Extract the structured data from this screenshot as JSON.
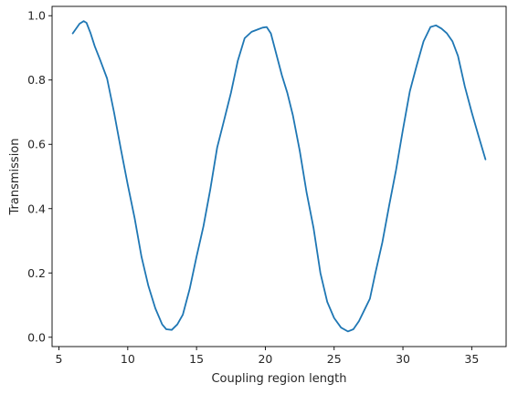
{
  "chart_data": {
    "type": "line",
    "title": "",
    "xlabel": "Coupling region length",
    "ylabel": "Transmission",
    "xlim": [
      4.5,
      37.5
    ],
    "ylim": [
      -0.029,
      1.029
    ],
    "xticks": [
      5,
      10,
      15,
      20,
      25,
      30,
      35
    ],
    "yticks": [
      0.0,
      0.2,
      0.4,
      0.6,
      0.8,
      1.0
    ],
    "grid": false,
    "legend": "none",
    "series": [
      {
        "color": "#1f77b4",
        "x": [
          6,
          6.5,
          6.8,
          7,
          7.3,
          7.6,
          8.0,
          8.5,
          9.0,
          9.5,
          10.0,
          10.5,
          11.0,
          11.5,
          12.0,
          12.5,
          12.8,
          13.2,
          13.6,
          14.0,
          14.5,
          15.0,
          15.5,
          16.0,
          16.5,
          17.0,
          17.5,
          18.0,
          18.5,
          19.0,
          19.5,
          19.8,
          20.1,
          20.4,
          20.8,
          21.2,
          21.6,
          22.0,
          22.5,
          23.0,
          23.5,
          24.0,
          24.5,
          25.0,
          25.5,
          26.0,
          26.4,
          26.8,
          27.2,
          27.6,
          28.0,
          28.5,
          29.0,
          29.5,
          30.0,
          30.5,
          31.0,
          31.5,
          32.0,
          32.4,
          32.8,
          33.2,
          33.6,
          34.0,
          34.5,
          35.0,
          35.5,
          36.0
        ],
        "y": [
          0.945,
          0.975,
          0.983,
          0.978,
          0.945,
          0.905,
          0.862,
          0.805,
          0.7,
          0.585,
          0.475,
          0.37,
          0.25,
          0.16,
          0.09,
          0.04,
          0.025,
          0.023,
          0.04,
          0.07,
          0.15,
          0.25,
          0.345,
          0.46,
          0.59,
          0.675,
          0.76,
          0.86,
          0.93,
          0.95,
          0.958,
          0.963,
          0.965,
          0.945,
          0.88,
          0.815,
          0.76,
          0.69,
          0.58,
          0.45,
          0.34,
          0.2,
          0.11,
          0.06,
          0.03,
          0.018,
          0.025,
          0.05,
          0.085,
          0.12,
          0.2,
          0.295,
          0.41,
          0.52,
          0.645,
          0.765,
          0.845,
          0.92,
          0.965,
          0.97,
          0.96,
          0.945,
          0.92,
          0.875,
          0.78,
          0.7,
          0.625,
          0.553
        ]
      }
    ]
  }
}
